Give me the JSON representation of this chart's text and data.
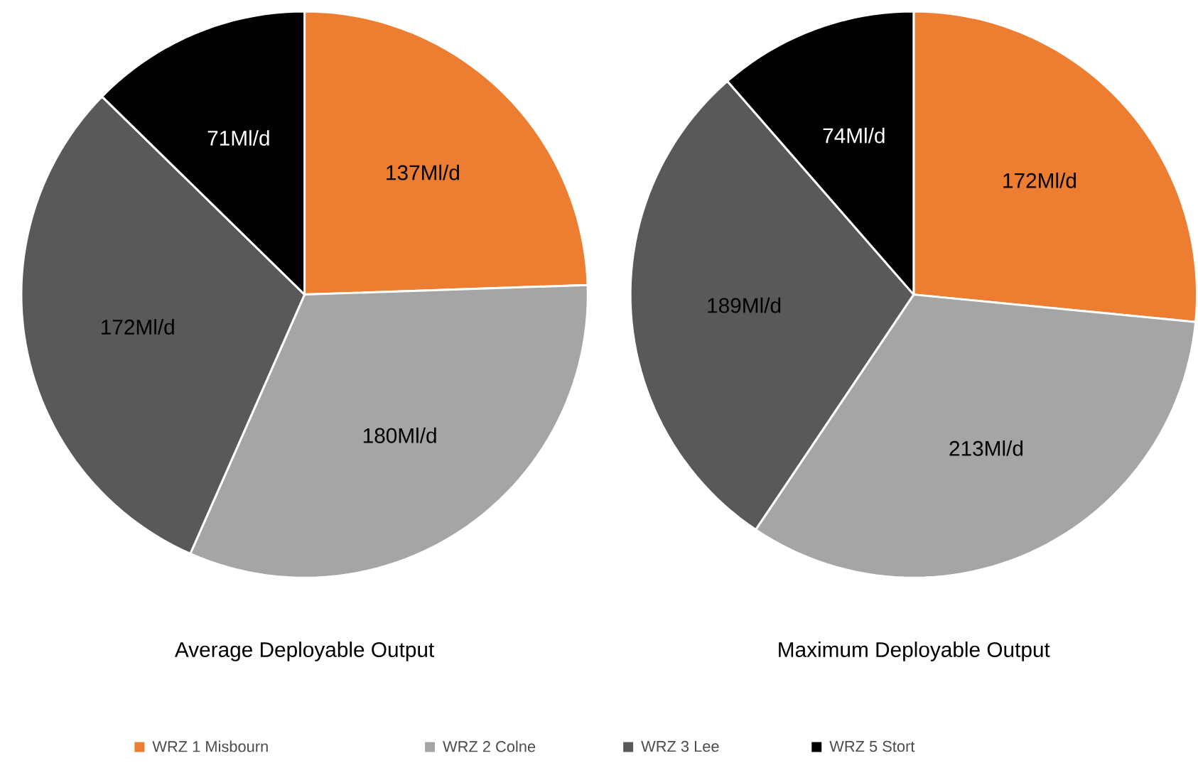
{
  "chart_data": [
    {
      "type": "pie",
      "title": "Average Deployable Output",
      "categories": [
        "WRZ 1 Misbourn",
        "WRZ 2 Colne",
        "WRZ 3 Lee",
        "WRZ 5 Stort"
      ],
      "values": [
        137,
        180,
        172,
        71
      ],
      "colors": [
        "#ed7d31",
        "#a5a5a5",
        "#595959",
        "#000000"
      ],
      "value_labels": [
        "137Ml/d",
        "180Ml/d",
        "172Ml/d",
        "71Ml/d"
      ],
      "legend": "bottom"
    },
    {
      "type": "pie",
      "title": "Maximum Deployable Output",
      "categories": [
        null,
        null,
        null,
        null
      ],
      "values": [
        172,
        213,
        189,
        74
      ],
      "colors": [
        "#ed7d31",
        "#a5a5a5",
        "#595959",
        "#000000"
      ],
      "value_labels": [
        "172Ml/d",
        "213Ml/d",
        "189Ml/d",
        "74Ml/d"
      ]
    }
  ]
}
